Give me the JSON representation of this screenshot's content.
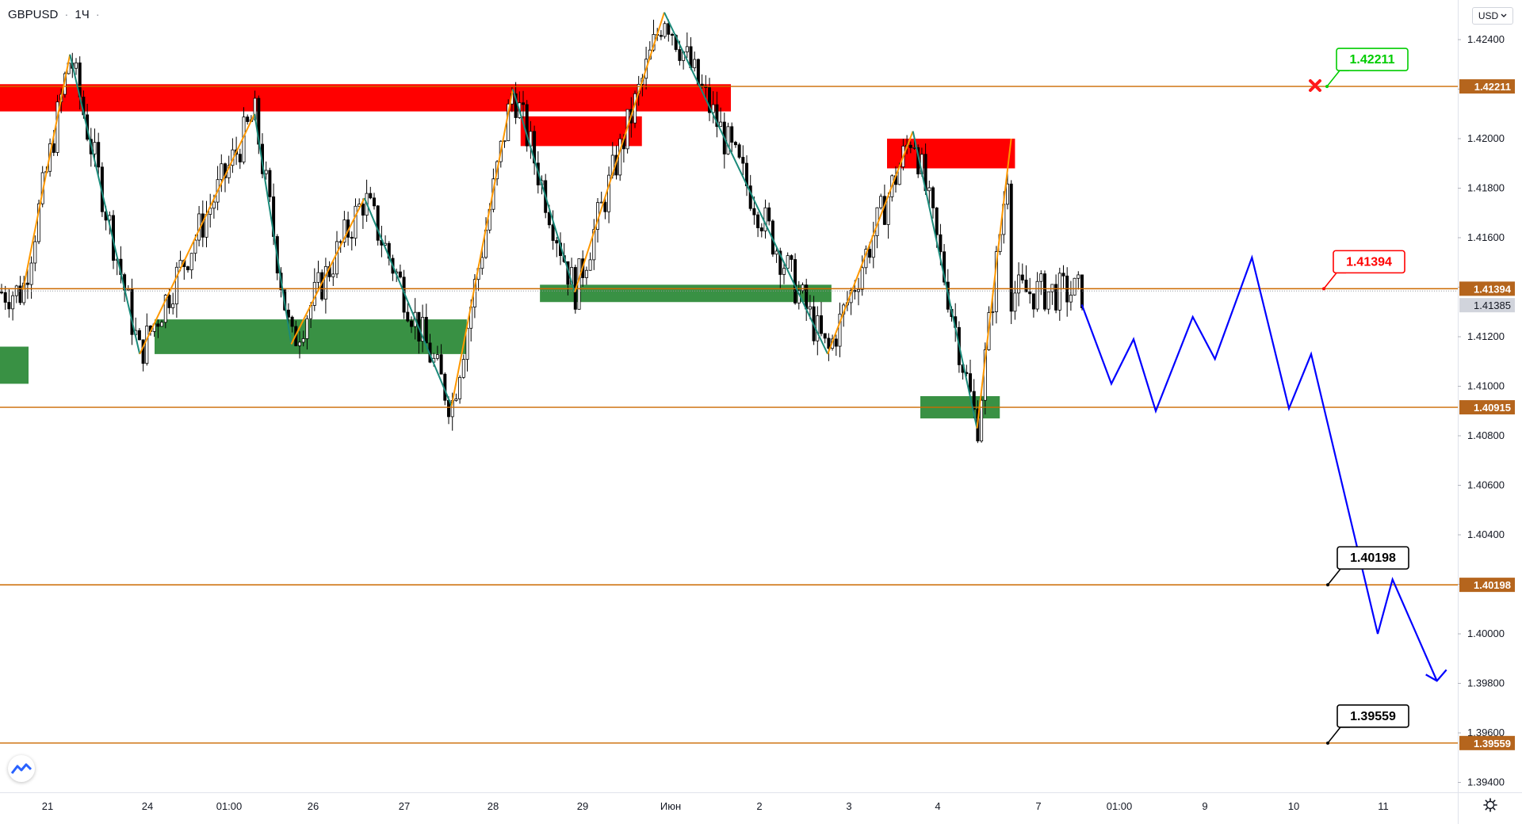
{
  "header": {
    "symbol": "GBPUSD",
    "interval": "1Ч"
  },
  "currency": "USD",
  "icons": {
    "currency_dropdown": "chevron-down-icon",
    "logo": "tradingview-logo-icon",
    "settings": "gear-icon",
    "invalidated_target": "red-x-icon"
  },
  "colors": {
    "support_zone": "#2e8b3a",
    "resistance_zone": "#ff0000",
    "level_line": "#cc6a00",
    "zigzag_up": "#ff9800",
    "zigzag_down": "#1a8a7a",
    "forecast": "#0000ff",
    "green_label": "#00cc00",
    "red_label": "#ff0000"
  },
  "chart_data": {
    "type": "line",
    "title": "",
    "ylim": [
      1.3936,
      1.4256
    ],
    "y_ticks": [
      "1.42400",
      "1.42200",
      "1.42000",
      "1.41800",
      "1.41600",
      "1.41400",
      "1.41200",
      "1.41000",
      "1.40800",
      "1.40600",
      "1.40400",
      "1.40200",
      "1.40000",
      "1.39800",
      "1.39600",
      "1.39400"
    ],
    "x_ticks": [
      "21",
      "24",
      "01:00",
      "26",
      "27",
      "28",
      "29",
      "Июн",
      "2",
      "3",
      "4",
      "7",
      "01:00",
      "9",
      "10",
      "11"
    ],
    "current_price": "1.41385",
    "levels": [
      {
        "value": 1.42211,
        "label": "1.42211",
        "callout": "1.42211",
        "callout_style": "green"
      },
      {
        "value": 1.41394,
        "label": "1.41394",
        "callout": "1.41394",
        "callout_style": "red"
      },
      {
        "value": 1.40915,
        "label": "1.40915"
      },
      {
        "value": 1.40198,
        "label": "1.40198",
        "callout": "1.40198",
        "callout_style": "black"
      },
      {
        "value": 1.39559,
        "label": "1.39559",
        "callout": "1.39559",
        "callout_style": "black"
      }
    ],
    "zones": [
      {
        "kind": "support",
        "period": [
          "19",
          "21"
        ],
        "range": [
          1.4101,
          1.4116
        ]
      },
      {
        "kind": "support",
        "period": [
          "24 12:00",
          "27 20:00"
        ],
        "range": [
          1.4113,
          1.4127
        ]
      },
      {
        "kind": "support",
        "period": [
          "28 15:00",
          "2 21:00"
        ],
        "range": [
          1.4134,
          1.4141
        ]
      },
      {
        "kind": "support",
        "period": [
          "3 21:00",
          "4 18:00"
        ],
        "range": [
          1.4087,
          1.4096
        ]
      },
      {
        "kind": "resistance",
        "period": [
          "19",
          "1 18:00"
        ],
        "range": [
          1.4211,
          1.4222
        ]
      },
      {
        "kind": "resistance",
        "period": [
          "28 10:00",
          "29 18:00"
        ],
        "range": [
          1.4197,
          1.4209
        ]
      },
      {
        "kind": "resistance",
        "period": [
          "3 12:00",
          "4 22:00"
        ],
        "range": [
          1.4188,
          1.42
        ]
      }
    ],
    "zigzag": [
      {
        "date": "20 21:00",
        "value": 1.4139
      },
      {
        "date": "21 11:00",
        "value": 1.4234
      },
      {
        "date": "24 07:00",
        "value": 1.4113
      },
      {
        "date": "25 14:00",
        "value": 1.421
      },
      {
        "date": "25 22:00",
        "value": 1.4117
      },
      {
        "date": "26 17:00",
        "value": 1.4176
      },
      {
        "date": "27 16:00",
        "value": 1.4092
      },
      {
        "date": "28 08:00",
        "value": 1.422
      },
      {
        "date": "29 00:00",
        "value": 1.4138
      },
      {
        "date": "1 00:00",
        "value": 1.4251
      },
      {
        "date": "2 20:00",
        "value": 1.4113
      },
      {
        "date": "3 19:00",
        "value": 1.4203
      },
      {
        "date": "4 12:00",
        "value": 1.4083
      },
      {
        "date": "4 21:00",
        "value": 1.42
      }
    ],
    "forecast": [
      {
        "date": "7 16:00",
        "value": 1.4133
      },
      {
        "date": "8 00:00",
        "value": 1.4101
      },
      {
        "date": "8 06:00",
        "value": 1.4119
      },
      {
        "date": "8 12:00",
        "value": 1.409
      },
      {
        "date": "8 22:00",
        "value": 1.4128
      },
      {
        "date": "9 04:00",
        "value": 1.4111
      },
      {
        "date": "9 14:00",
        "value": 1.4152
      },
      {
        "date": "10 00:00",
        "value": 1.4091
      },
      {
        "date": "10 06:00",
        "value": 1.4113
      },
      {
        "date": "11 00:00",
        "value": 1.4
      },
      {
        "date": "11 04:00",
        "value": 1.4022
      },
      {
        "date": "11 16:00",
        "value": 1.3981
      }
    ]
  }
}
